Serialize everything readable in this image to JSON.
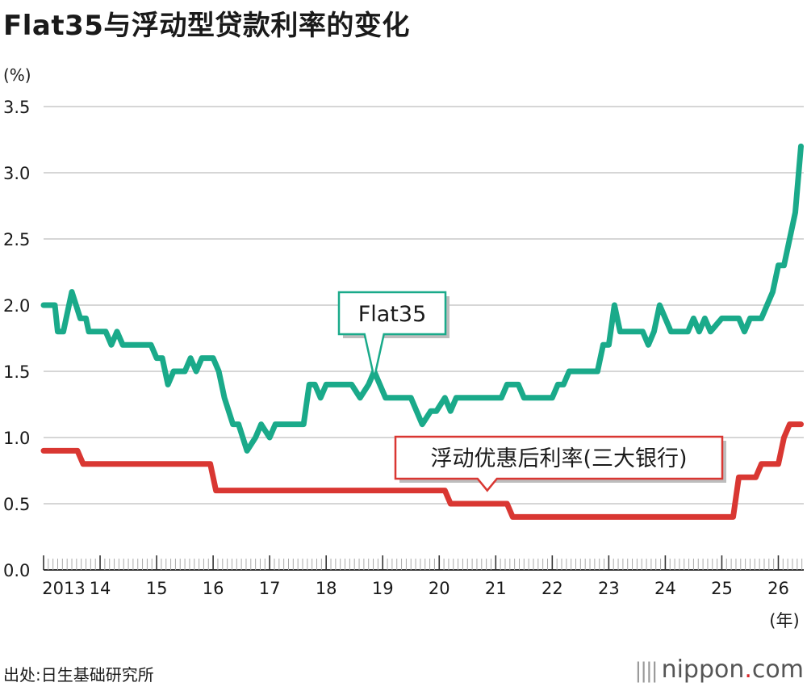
{
  "chart_data": {
    "type": "line",
    "title": "Flat35与浮动型贷款利率的变化",
    "yunit": "(%)",
    "xunit": "(年)",
    "ylim": [
      0,
      3.5
    ],
    "yticks": [
      "0.0",
      "0.5",
      "1.0",
      "1.5",
      "2.0",
      "2.5",
      "3.0",
      "3.5"
    ],
    "xticks": [
      "2013",
      "14",
      "15",
      "16",
      "17",
      "18",
      "19",
      "20",
      "21",
      "22",
      "23",
      "24",
      "25",
      "26"
    ],
    "xlim": [
      2013,
      2026.45
    ],
    "grid": true,
    "series": [
      {
        "name": "Flat35",
        "color": "#1aaa8a",
        "x": [
          2013.0,
          2013.2,
          2013.25,
          2013.35,
          2013.5,
          2013.65,
          2013.75,
          2013.8,
          2014.1,
          2014.2,
          2014.3,
          2014.4,
          2014.5,
          2014.9,
          2015.0,
          2015.1,
          2015.2,
          2015.3,
          2015.5,
          2015.6,
          2015.7,
          2015.8,
          2016.0,
          2016.1,
          2016.2,
          2016.35,
          2016.45,
          2016.6,
          2016.75,
          2016.85,
          2017.0,
          2017.1,
          2017.6,
          2017.7,
          2017.8,
          2017.9,
          2018.0,
          2018.45,
          2018.6,
          2018.75,
          2018.85,
          2019.05,
          2019.4,
          2019.5,
          2019.6,
          2019.7,
          2019.85,
          2019.95,
          2020.1,
          2020.2,
          2020.3,
          2021.1,
          2021.2,
          2021.4,
          2021.5,
          2022.0,
          2022.1,
          2022.2,
          2022.3,
          2022.8,
          2022.9,
          2023.0,
          2023.1,
          2023.2,
          2023.3,
          2023.6,
          2023.7,
          2023.8,
          2023.9,
          2024.0,
          2024.1,
          2024.4,
          2024.5,
          2024.6,
          2024.7,
          2024.8,
          2025.0,
          2025.3,
          2025.4,
          2025.5,
          2025.6,
          2025.7,
          2025.9,
          2026.0,
          2026.1,
          2026.2,
          2026.3,
          2026.4
        ],
        "values": [
          2.0,
          2.0,
          1.8,
          1.8,
          2.1,
          1.9,
          1.9,
          1.8,
          1.8,
          1.7,
          1.8,
          1.7,
          1.7,
          1.7,
          1.6,
          1.6,
          1.4,
          1.5,
          1.5,
          1.6,
          1.5,
          1.6,
          1.6,
          1.5,
          1.3,
          1.1,
          1.1,
          0.9,
          1.0,
          1.1,
          1.0,
          1.1,
          1.1,
          1.4,
          1.4,
          1.3,
          1.4,
          1.4,
          1.3,
          1.4,
          1.5,
          1.3,
          1.3,
          1.3,
          1.2,
          1.1,
          1.2,
          1.2,
          1.3,
          1.2,
          1.3,
          1.3,
          1.4,
          1.4,
          1.3,
          1.3,
          1.4,
          1.4,
          1.5,
          1.5,
          1.7,
          1.7,
          2.0,
          1.8,
          1.8,
          1.8,
          1.7,
          1.8,
          2.0,
          1.9,
          1.8,
          1.8,
          1.9,
          1.8,
          1.9,
          1.8,
          1.9,
          1.9,
          1.8,
          1.9,
          1.9,
          1.9,
          2.1,
          2.3,
          2.3,
          2.5,
          2.7,
          3.2
        ]
      },
      {
        "name": "浮动优惠后利率(三大银行)",
        "color": "#d93732",
        "x": [
          2013.0,
          2013.6,
          2013.7,
          2015.95,
          2016.05,
          2020.1,
          2020.2,
          2021.2,
          2021.3,
          2025.2,
          2025.3,
          2025.6,
          2025.7,
          2026.0,
          2026.1,
          2026.2,
          2026.4
        ],
        "values": [
          0.9,
          0.9,
          0.8,
          0.8,
          0.6,
          0.6,
          0.5,
          0.5,
          0.4,
          0.4,
          0.7,
          0.7,
          0.8,
          0.8,
          1.0,
          1.1,
          1.1
        ]
      }
    ],
    "annotations": [
      {
        "text": "Flat35",
        "series": 0,
        "x": 2018.85,
        "y": 1.5
      },
      {
        "text": "浮动优惠后利率(三大银行)",
        "series": 1,
        "x": 2020.85,
        "y": 0.5
      }
    ]
  },
  "source": "出处:日生基础研究所",
  "brand": {
    "bars": "||||",
    "name": "nippon",
    "dot": ".",
    "tld": "com"
  }
}
